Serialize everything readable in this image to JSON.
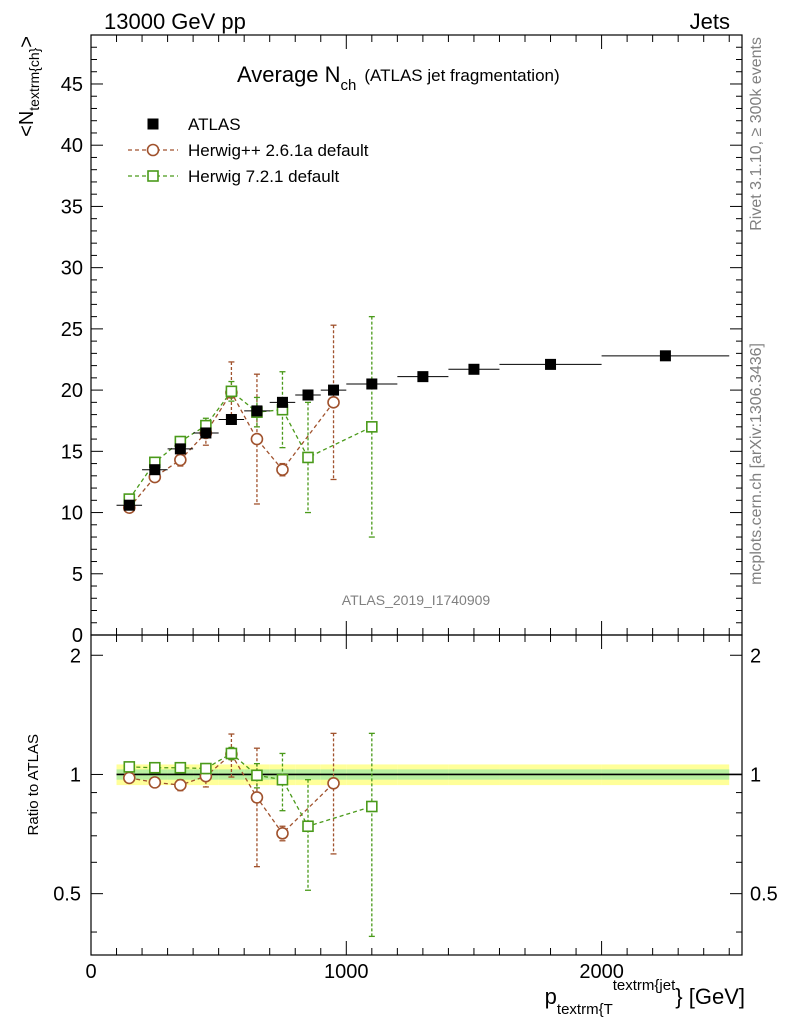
{
  "header": {
    "left": "13000 GeV pp",
    "right": "Jets"
  },
  "side_labels": {
    "rivet": "Rivet 3.1.10, ≥ 300k events",
    "mcplots": "mcplots.cern.ch [arXiv:1306.3436]"
  },
  "chart_data": [
    {
      "type": "scatter",
      "title_main": "Average N",
      "title_sub": "ch",
      "title_rest": "(ATLAS jet fragmentation)",
      "analysis_id": "ATLAS_2019_I1740909",
      "ylabel_main": "<N",
      "ylabel_sub": "textrm{ch}",
      "ylabel_end": ">",
      "xlim": [
        0,
        2550
      ],
      "ylim": [
        0,
        49
      ],
      "yticks": [
        0,
        5,
        10,
        15,
        20,
        25,
        30,
        35,
        40,
        45
      ],
      "legend": {
        "placement": "top-left"
      },
      "series": [
        {
          "name": "ATLAS",
          "color": "#000000",
          "marker": "filled-square",
          "x": [
            150,
            250,
            350,
            450,
            550,
            650,
            750,
            850,
            950,
            1100,
            1300,
            1500,
            1800,
            2250
          ],
          "y": [
            10.6,
            13.5,
            15.2,
            16.5,
            17.6,
            18.3,
            19.0,
            19.6,
            20.0,
            20.5,
            21.1,
            21.7,
            22.1,
            22.8
          ],
          "xerr": [
            50,
            50,
            50,
            50,
            50,
            50,
            50,
            50,
            50,
            100,
            100,
            100,
            200,
            250
          ]
        },
        {
          "name": "Herwig++ 2.6.1a default",
          "color": "#a0522d",
          "marker": "open-circle",
          "x": [
            150,
            250,
            350,
            450,
            550,
            650,
            750,
            950
          ],
          "y": [
            10.4,
            12.9,
            14.3,
            16.5,
            19.8,
            16.0,
            13.5,
            19.0
          ],
          "err": [
            0.2,
            0.3,
            0.5,
            1.0,
            2.5,
            5.3,
            0.5,
            6.3
          ]
        },
        {
          "name": "Herwig 7.2.1 default",
          "color": "#4a9a1a",
          "marker": "open-square",
          "x": [
            150,
            250,
            350,
            450,
            550,
            650,
            750,
            850,
            1100
          ],
          "y": [
            11.1,
            14.1,
            15.8,
            17.1,
            19.9,
            18.2,
            18.4,
            14.5,
            17.0
          ],
          "err": [
            0.2,
            0.3,
            0.4,
            0.6,
            0.8,
            1.2,
            3.1,
            4.5,
            9.0
          ]
        }
      ]
    },
    {
      "type": "scatter",
      "ylabel": "Ratio to ATLAS",
      "xlabel_main": "p",
      "xlabel_sub": "textrm{T",
      "xlabel_sup": "textrm{jet",
      "xlabel_end": "} [GeV]",
      "xlim": [
        0,
        2550
      ],
      "ylim": [
        0.35,
        2.25
      ],
      "xticks": [
        0,
        1000,
        2000
      ],
      "yticks": [
        0.5,
        1,
        2
      ],
      "series": [
        {
          "name": "Herwig++ 2.6.1a default",
          "color": "#a0522d",
          "marker": "open-circle",
          "x": [
            150,
            250,
            350,
            450,
            550,
            650,
            750,
            950
          ],
          "y": [
            0.98,
            0.955,
            0.94,
            0.99,
            1.125,
            0.875,
            0.71,
            0.95
          ],
          "err": [
            0.02,
            0.02,
            0.03,
            0.06,
            0.14,
            0.29,
            0.03,
            0.32
          ]
        },
        {
          "name": "Herwig 7.2.1 default",
          "color": "#4a9a1a",
          "marker": "open-square",
          "x": [
            150,
            250,
            350,
            450,
            550,
            650,
            750,
            850,
            1100
          ],
          "y": [
            1.045,
            1.04,
            1.04,
            1.035,
            1.13,
            0.995,
            0.97,
            0.74,
            0.83
          ],
          "err": [
            0.02,
            0.02,
            0.02,
            0.03,
            0.04,
            0.07,
            0.16,
            0.23,
            0.44
          ]
        }
      ]
    }
  ]
}
